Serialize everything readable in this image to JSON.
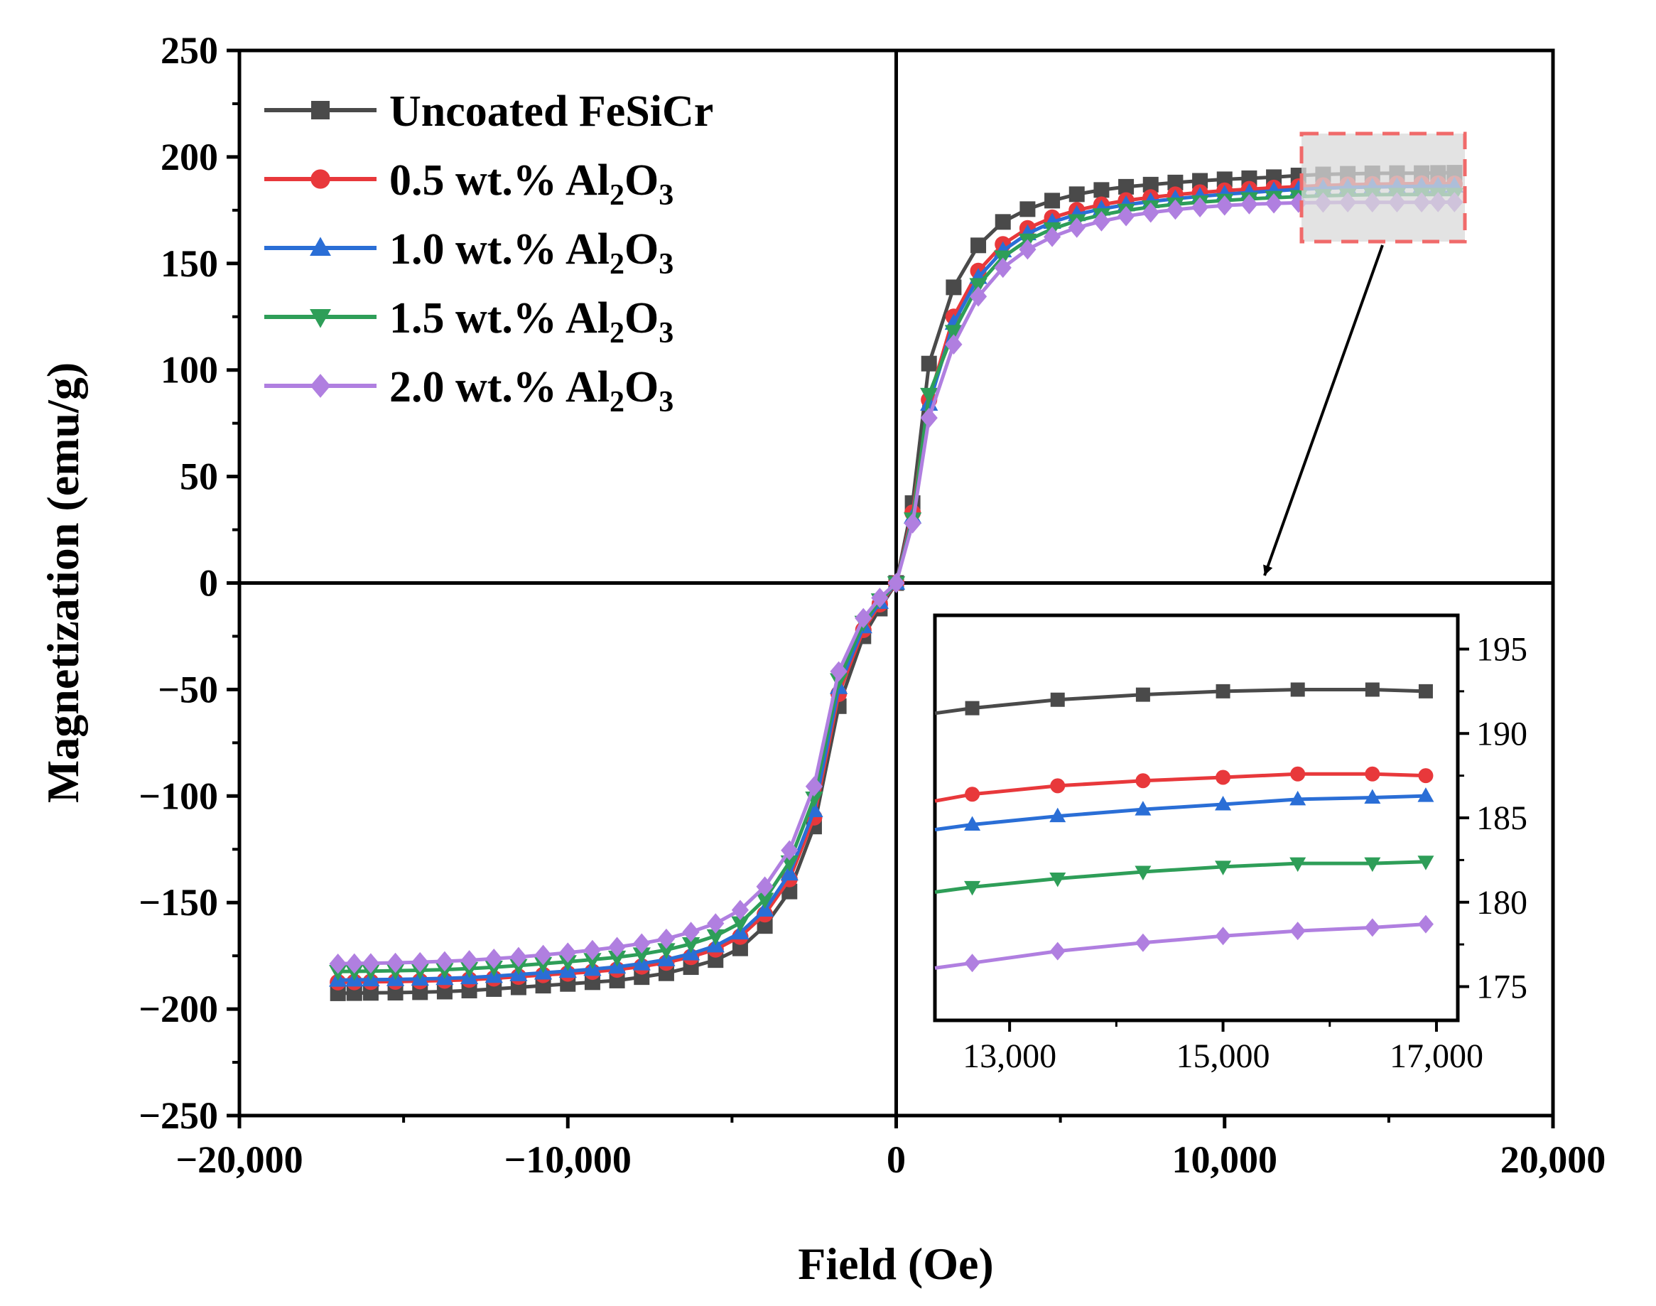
{
  "chart_data": {
    "type": "line",
    "xlabel": "Field (Oe)",
    "ylabel": "Magnetization (emu/g)",
    "xlim": [
      -20000,
      20000
    ],
    "ylim": [
      -250,
      250
    ],
    "x_ticks": [
      -20000,
      -10000,
      0,
      10000,
      20000
    ],
    "x_tick_labels": [
      "−20,000",
      "−10,000",
      "0",
      "10,000",
      "20,000"
    ],
    "y_ticks": [
      250,
      200,
      150,
      100,
      50,
      0,
      -50,
      -100,
      -150,
      -200,
      -250
    ],
    "y_tick_labels": [
      "250",
      "200",
      "150",
      "100",
      "50",
      "0",
      "−50",
      "−100",
      "−150",
      "−200",
      "−250"
    ],
    "legend_position": "top-left",
    "x": [
      -17000,
      -16500,
      -16000,
      -15250,
      -14500,
      -13750,
      -13000,
      -12250,
      -11500,
      -10750,
      -10000,
      -9250,
      -8500,
      -7750,
      -7000,
      -6250,
      -5500,
      -4750,
      -4000,
      -3250,
      -2500,
      -1750,
      -1000,
      -500,
      0,
      500,
      1000,
      1750,
      2500,
      3250,
      4000,
      4750,
      5500,
      6250,
      7000,
      7750,
      8500,
      9250,
      10000,
      10750,
      11500,
      12250,
      13000,
      13750,
      14500,
      15250,
      16000,
      16500,
      17000
    ],
    "series": [
      {
        "name": "Uncoated FeSiCr",
        "color": "#4a4a4a",
        "marker": "square",
        "values": [
          -192.6,
          -192.5,
          -192.4,
          -192.3,
          -192.1,
          -191.8,
          -191.3,
          -190.6,
          -189.8,
          -189,
          -188.2,
          -187.4,
          -186.6,
          -185,
          -183.2,
          -180.3,
          -177,
          -171.5,
          -161,
          -144.8,
          -114.3,
          -57.8,
          -25,
          -12,
          0,
          37.5,
          103,
          138.8,
          158.5,
          169.5,
          175.5,
          179.5,
          182.5,
          184.5,
          186,
          187,
          188,
          188.8,
          189.5,
          190,
          190.5,
          191.3,
          191.8,
          192.1,
          192.3,
          192.4,
          192.4,
          192.5,
          192.6
        ]
      },
      {
        "name": "0.5 wt.% Al2O3",
        "color": "#e8383b",
        "marker": "circle",
        "values": [
          -187.4,
          -187.3,
          -187.2,
          -187.1,
          -186.9,
          -186.6,
          -186.2,
          -185.6,
          -184.8,
          -184,
          -183.3,
          -182.5,
          -181.5,
          -180,
          -178.2,
          -175.5,
          -172,
          -166,
          -155.5,
          -139,
          -110,
          -52,
          -22,
          -10,
          0,
          33,
          86,
          125,
          146.5,
          159,
          166.5,
          171.5,
          175,
          177.6,
          179.6,
          181,
          182.3,
          183.3,
          184.2,
          184.9,
          185.5,
          186.1,
          186.6,
          187,
          187.2,
          187.4,
          187.5,
          187.5,
          187.4
        ]
      },
      {
        "name": "1.0 wt.% Al2O3",
        "color": "#2a6ed6",
        "marker": "triangle-up",
        "values": [
          -186.4,
          -186.3,
          -186.2,
          -186.1,
          -185.9,
          -185.6,
          -185.2,
          -184.6,
          -183.8,
          -183,
          -182.2,
          -181.3,
          -180.2,
          -178.7,
          -176.8,
          -174,
          -170.3,
          -164.2,
          -153.5,
          -136.5,
          -106.8,
          -49,
          -20.5,
          -9,
          0,
          31,
          84,
          122,
          143.5,
          156,
          164,
          169.4,
          173,
          175.6,
          177.6,
          179.1,
          180.4,
          181.5,
          182.5,
          183.3,
          184.1,
          184.8,
          185.3,
          185.7,
          185.9,
          186.1,
          186.2,
          186.3,
          186.4
        ]
      },
      {
        "name": "1.5 wt.% Al2O3",
        "color": "#2e9e58",
        "marker": "triangle-down",
        "values": [
          -182.4,
          -182.3,
          -182.2,
          -182,
          -181.8,
          -181.5,
          -181,
          -180.4,
          -179.6,
          -178.7,
          -177.8,
          -176.8,
          -175.7,
          -174.2,
          -172.2,
          -169.4,
          -165.7,
          -159.6,
          -148.5,
          -131,
          -101,
          -45.5,
          -18.5,
          -8,
          0,
          30,
          88.5,
          118,
          140,
          153,
          160.9,
          166.2,
          170,
          172.8,
          174.9,
          176.5,
          177.8,
          178.8,
          179.6,
          180.3,
          180.9,
          181.4,
          181.8,
          182.1,
          182.3,
          182.4,
          182.4,
          182.4,
          182.4
        ]
      },
      {
        "name": "2.0 wt.% Al2O3",
        "color": "#b07fe0",
        "marker": "diamond",
        "values": [
          -178.7,
          -178.6,
          -178.5,
          -178.3,
          -178,
          -177.6,
          -177.1,
          -176.4,
          -175.6,
          -174.6,
          -173.5,
          -172.3,
          -170.9,
          -169.2,
          -167,
          -163.8,
          -159.8,
          -153.5,
          -142.5,
          -125.5,
          -95.5,
          -41.5,
          -16.5,
          -7,
          0,
          28,
          77.5,
          112,
          134.5,
          148,
          156.6,
          162.5,
          166.8,
          169.8,
          172.2,
          173.9,
          175.3,
          176.4,
          177.2,
          177.8,
          178.2,
          178.5,
          178.6,
          178.7,
          178.7,
          178.7,
          178.7,
          178.8,
          178.8
        ]
      }
    ],
    "legend_labels": [
      {
        "base": "Uncoated FeSiCr",
        "sub1": "",
        "mid": "",
        "sub2": ""
      },
      {
        "base": "0.5 wt.% Al",
        "sub1": "2",
        "mid": "O",
        "sub2": "3"
      },
      {
        "base": "1.0 wt.% Al",
        "sub1": "2",
        "mid": "O",
        "sub2": "3"
      },
      {
        "base": "1.5 wt.% Al",
        "sub1": "2",
        "mid": "O",
        "sub2": "3"
      },
      {
        "base": "2.0 wt.% Al",
        "sub1": "2",
        "mid": "O",
        "sub2": "3"
      }
    ],
    "inset": {
      "xlim": [
        12300,
        17200
      ],
      "ylim": [
        173,
        197
      ],
      "x_ticks": [
        13000,
        15000,
        17000
      ],
      "x_tick_labels": [
        "13,000",
        "15,000",
        "17,000"
      ],
      "y_ticks": [
        195,
        190,
        185,
        180,
        175
      ],
      "y_tick_labels": [
        "195",
        "190",
        "185",
        "180",
        "175"
      ],
      "x": [
        12300,
        12650,
        13450,
        14250,
        15000,
        15700,
        16400,
        16900
      ],
      "series": [
        {
          "name": "Uncoated FeSiCr",
          "values": [
            191.2,
            191.5,
            192.0,
            192.3,
            192.5,
            192.6,
            192.6,
            192.5
          ]
        },
        {
          "name": "0.5 wt.% Al2O3",
          "values": [
            186.0,
            186.4,
            186.9,
            187.2,
            187.4,
            187.6,
            187.6,
            187.5
          ]
        },
        {
          "name": "1.0 wt.% Al2O3",
          "values": [
            184.3,
            184.6,
            185.1,
            185.5,
            185.8,
            186.1,
            186.2,
            186.3
          ]
        },
        {
          "name": "1.5 wt.% Al2O3",
          "values": [
            180.6,
            180.9,
            181.4,
            181.8,
            182.1,
            182.3,
            182.3,
            182.4
          ]
        },
        {
          "name": "2.0 wt.% Al2O3",
          "values": [
            176.1,
            176.4,
            177.1,
            177.6,
            178.0,
            178.3,
            178.5,
            178.7
          ]
        }
      ]
    }
  }
}
